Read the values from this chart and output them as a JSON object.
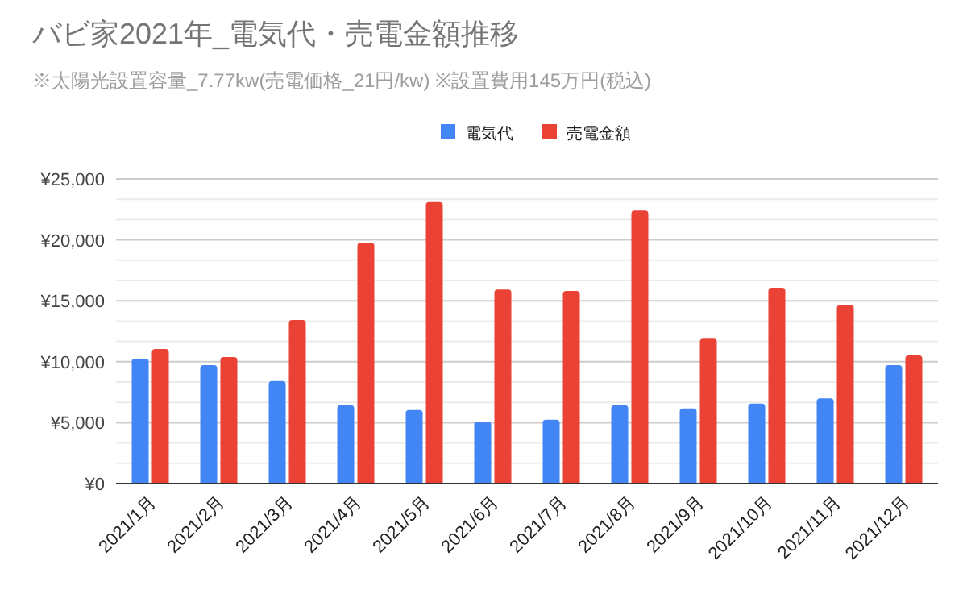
{
  "chart_data": {
    "type": "bar",
    "title": "バビ家2021年_電気代・売電金額推移",
    "subtitle": "※太陽光設置容量_7.77kw(売電価格_21円/kw)  ※設置費用145万円(税込)",
    "categories": [
      "2021/1月",
      "2021/2月",
      "2021/3月",
      "2021/4月",
      "2021/5月",
      "2021/6月",
      "2021/7月",
      "2021/8月",
      "2021/9月",
      "2021/10月",
      "2021/11月",
      "2021/12月"
    ],
    "series": [
      {
        "name": "電気代",
        "color": "#4285f4",
        "values": [
          10250,
          9730,
          8410,
          6430,
          6030,
          5100,
          5240,
          6430,
          6160,
          6560,
          7000,
          9730
        ]
      },
      {
        "name": "売電金額",
        "color": "#ea4335",
        "values": [
          11050,
          10390,
          13420,
          19760,
          23100,
          15930,
          15800,
          22400,
          11880,
          16070,
          14660,
          10520
        ]
      }
    ],
    "ylim": [
      0,
      25000
    ],
    "yticks": [
      {
        "value": 0,
        "label": "¥0"
      },
      {
        "value": 5000,
        "label": "¥5,000"
      },
      {
        "value": 10000,
        "label": "¥10,000"
      },
      {
        "value": 15000,
        "label": "¥15,000"
      },
      {
        "value": 20000,
        "label": "¥20,000"
      },
      {
        "value": 25000,
        "label": "¥25,000"
      }
    ],
    "grid": "y",
    "legend": "top"
  }
}
